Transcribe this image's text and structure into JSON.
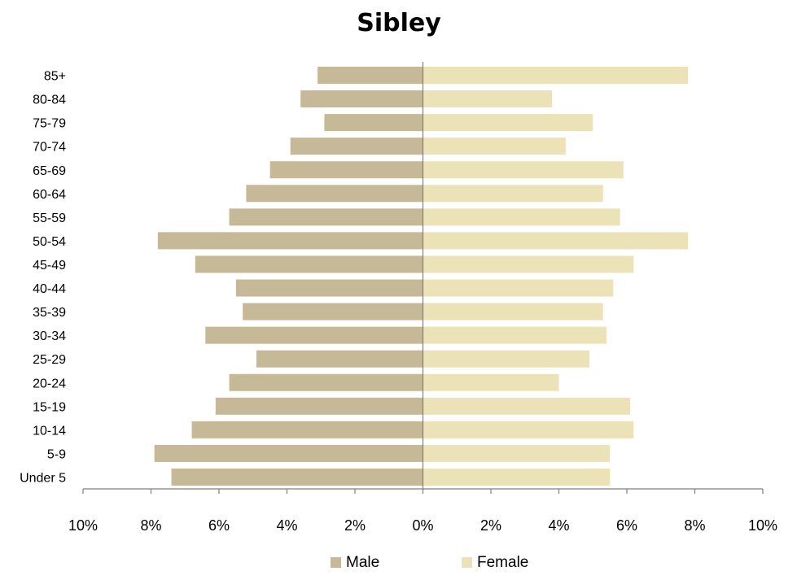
{
  "chart_data": {
    "type": "bar",
    "orientation": "horizontal",
    "style": "population-pyramid",
    "title": "Sibley",
    "categories": [
      "Under 5",
      "5-9",
      "10-14",
      "15-19",
      "20-24",
      "25-29",
      "30-34",
      "35-39",
      "40-44",
      "45-49",
      "50-54",
      "55-59",
      "60-64",
      "65-69",
      "70-74",
      "75-79",
      "80-84",
      "85+"
    ],
    "series": [
      {
        "name": "Male",
        "color": "#c6b997",
        "values": [
          7.4,
          7.9,
          6.8,
          6.1,
          5.7,
          4.9,
          6.4,
          5.3,
          5.5,
          6.7,
          7.8,
          5.7,
          5.2,
          4.5,
          3.9,
          2.9,
          3.6,
          3.1
        ]
      },
      {
        "name": "Female",
        "color": "#ebe2b8",
        "values": [
          5.5,
          5.5,
          6.2,
          6.1,
          4.0,
          4.9,
          5.4,
          5.3,
          5.6,
          6.2,
          7.8,
          5.8,
          5.3,
          5.9,
          4.2,
          5.0,
          3.8,
          7.8
        ]
      }
    ],
    "xlim": [
      -10,
      10
    ],
    "xticks": [
      -10,
      -8,
      -6,
      -4,
      -2,
      0,
      2,
      4,
      6,
      8,
      10
    ],
    "xtick_labels": [
      "10%",
      "8%",
      "6%",
      "4%",
      "2%",
      "0%",
      "2%",
      "4%",
      "6%",
      "8%",
      "10%"
    ],
    "legend_position": "bottom",
    "grid": false
  }
}
